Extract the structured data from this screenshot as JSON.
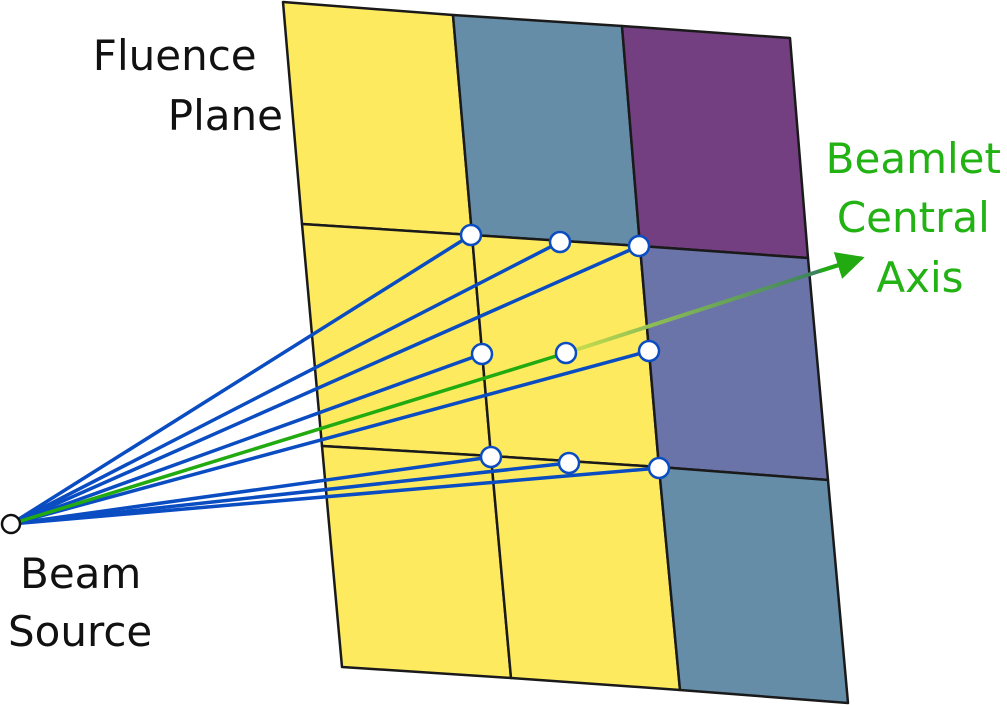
{
  "labels": {
    "fluence_plane": [
      "Fluence",
      "Plane"
    ],
    "beamlet_axis": [
      "Beamlet",
      "Central",
      "Axis"
    ],
    "beam_source": [
      "Beam",
      "Source"
    ]
  },
  "colors": {
    "yellow": "#fdea5f",
    "steel_blue": "#658da8",
    "purple": "#733f80",
    "slate_violet": "#6b74a8",
    "ray_blue": "#0a4cc2",
    "axis_green": "#22aa11",
    "axis_label_green": "#22b214",
    "text": "#111111"
  }
}
